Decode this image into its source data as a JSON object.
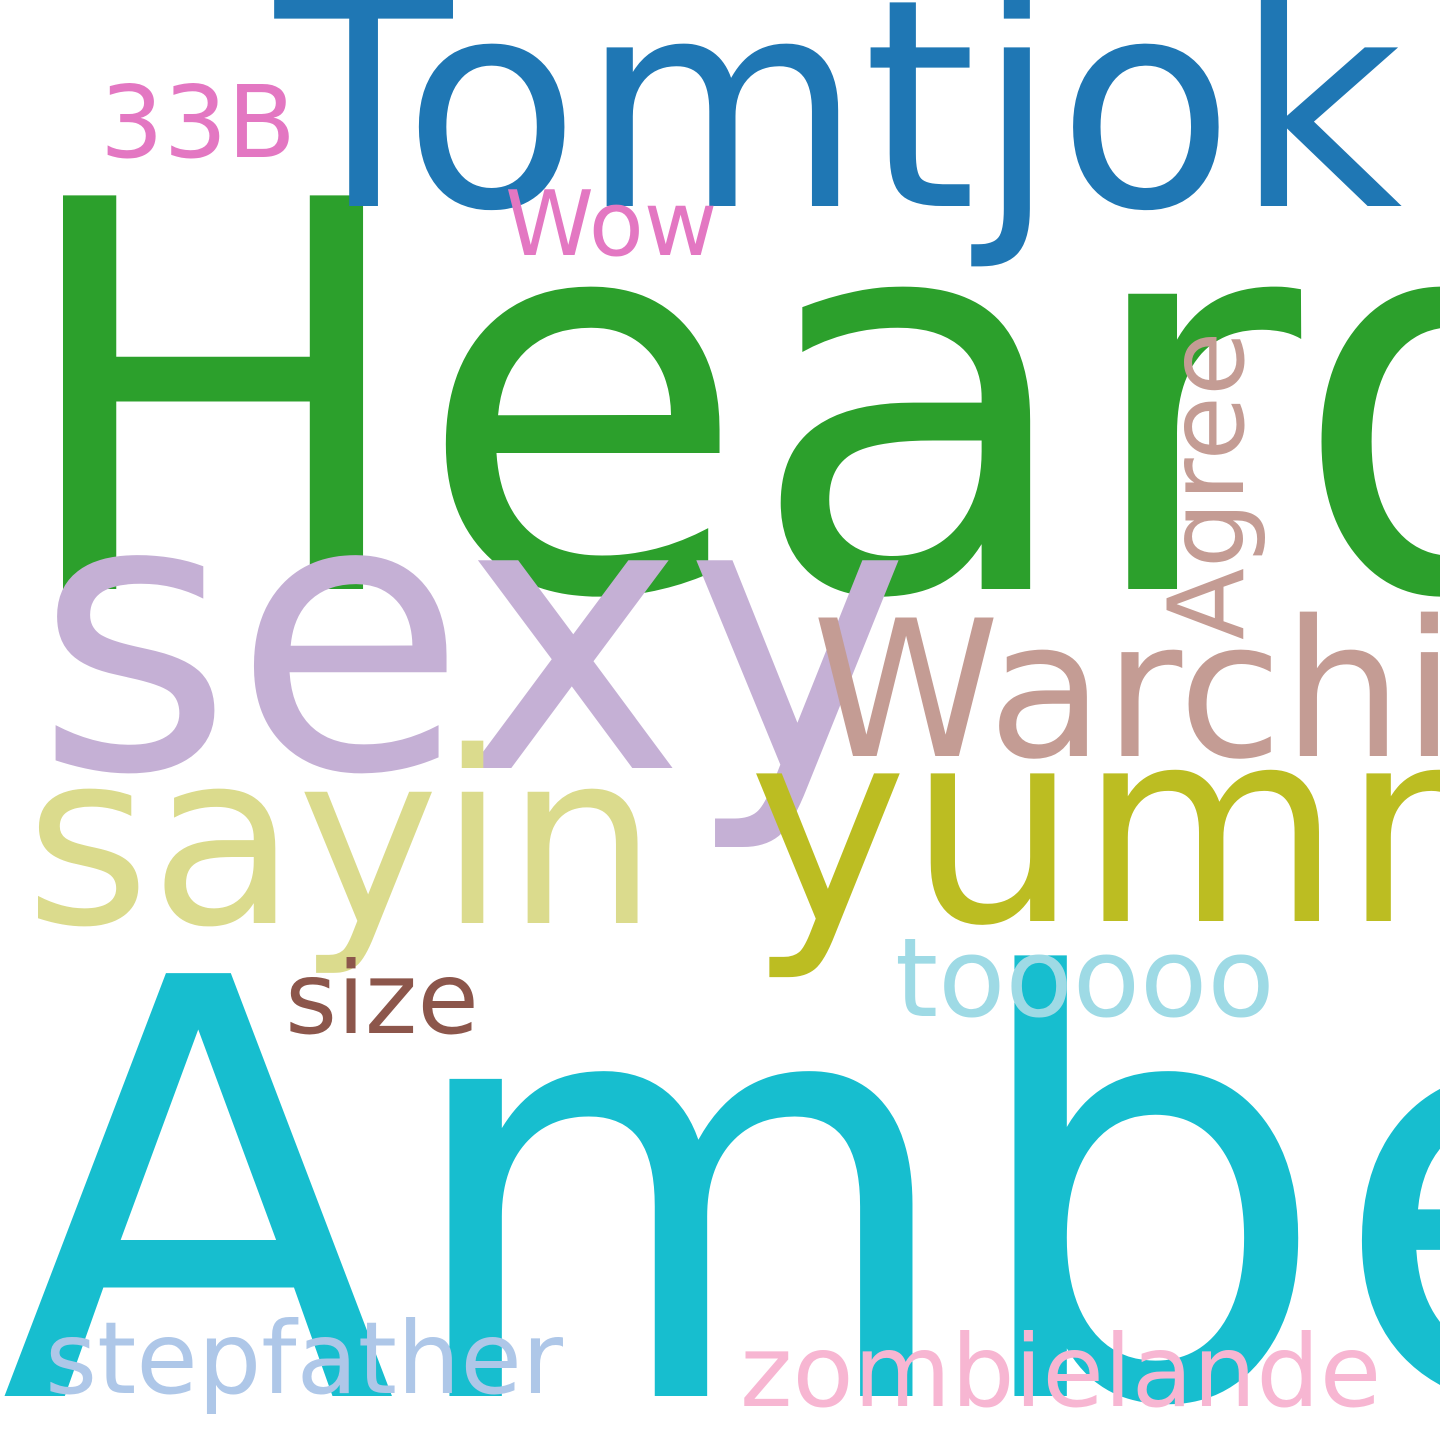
{
  "words": [
    {
      "id": "heard",
      "text": "Heard",
      "color": "#2ca02c"
    },
    {
      "id": "amber",
      "text": "Amber",
      "color": "#17becf"
    },
    {
      "id": "tomtjok",
      "text": "Tomtjok",
      "color": "#1f77b4"
    },
    {
      "id": "sexy",
      "text": "sexy",
      "color": "#c5b0d5"
    },
    {
      "id": "yummy",
      "text": "yummy",
      "color": "#bcbd22"
    },
    {
      "id": "sayin",
      "text": "sayin",
      "color": "#dbdb8d"
    },
    {
      "id": "warchin",
      "text": "Warchin",
      "color": "#c49c94"
    },
    {
      "id": "agree",
      "text": "Agree",
      "color": "#c49c94",
      "orientation": "vertical"
    },
    {
      "id": "33b",
      "text": "33B",
      "color": "#e377c2"
    },
    {
      "id": "wow",
      "text": "Wow",
      "color": "#e377c2"
    },
    {
      "id": "size",
      "text": "size",
      "color": "#8c564b"
    },
    {
      "id": "tooooo",
      "text": "tooooo",
      "color": "#9edae5"
    },
    {
      "id": "stepfather",
      "text": "stepfather",
      "color": "#aec7e8"
    },
    {
      "id": "zombielande",
      "text": "zombielande",
      "color": "#f7b6d2"
    }
  ]
}
